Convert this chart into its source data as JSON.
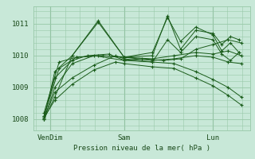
{
  "bg_color": "#c8e8d8",
  "plot_bg_color": "#c8e8d8",
  "line_color": "#1a5c1a",
  "grid_color": "#98c8a8",
  "xlabel": "Pression niveau de la mer( hPa )",
  "xtick_labels": [
    "VenDim",
    "Sam",
    "Lun"
  ],
  "xtick_positions": [
    0.08,
    0.42,
    0.83
  ],
  "ytick_values": [
    1008,
    1009,
    1010,
    1011
  ],
  "ylim": [
    1007.65,
    1011.55
  ],
  "xlim": [
    0.0,
    1.0
  ],
  "series": [
    [
      0.05,
      1008.0,
      0.1,
      1008.7,
      0.18,
      1010.0,
      0.3,
      1011.1,
      0.42,
      1009.95,
      0.55,
      1010.1,
      0.62,
      1011.2,
      0.68,
      1010.45,
      0.75,
      1010.9,
      0.83,
      1010.65,
      0.87,
      1010.15,
      0.91,
      1010.4,
      0.95,
      1010.1
    ],
    [
      0.05,
      1008.0,
      0.1,
      1009.0,
      0.18,
      1009.75,
      0.28,
      1010.0,
      0.42,
      1009.85,
      0.55,
      1009.8,
      0.62,
      1010.5,
      0.68,
      1010.1,
      0.75,
      1010.6,
      0.83,
      1010.5,
      0.87,
      1010.05,
      0.91,
      1009.85,
      0.95,
      1010.1
    ],
    [
      0.05,
      1008.1,
      0.1,
      1009.3,
      0.18,
      1009.85,
      0.25,
      1010.0,
      0.35,
      1010.05,
      0.42,
      1009.85,
      0.5,
      1009.9,
      0.6,
      1009.85,
      0.68,
      1009.9,
      0.75,
      1010.2,
      0.83,
      1010.35,
      0.9,
      1010.5,
      0.96,
      1010.4
    ],
    [
      0.05,
      1008.2,
      0.12,
      1009.8,
      0.2,
      1009.95,
      0.32,
      1010.0,
      0.42,
      1009.95,
      0.55,
      1009.9,
      0.65,
      1010.0,
      0.75,
      1010.1,
      0.83,
      1010.05,
      0.9,
      1010.15,
      0.96,
      1010.0
    ],
    [
      0.05,
      1008.1,
      0.12,
      1009.6,
      0.2,
      1009.95,
      0.3,
      1010.0,
      0.42,
      1009.95,
      0.55,
      1009.85,
      0.65,
      1009.9,
      0.75,
      1010.0,
      0.83,
      1009.95,
      0.9,
      1009.8,
      0.96,
      1009.75
    ],
    [
      0.05,
      1008.05,
      0.1,
      1008.85,
      0.18,
      1009.3,
      0.28,
      1009.7,
      0.38,
      1010.0,
      0.42,
      1009.9,
      0.55,
      1009.8,
      0.65,
      1009.75,
      0.75,
      1009.5,
      0.83,
      1009.25,
      0.9,
      1009.0,
      0.96,
      1008.7
    ],
    [
      0.05,
      1008.05,
      0.1,
      1008.6,
      0.18,
      1009.1,
      0.28,
      1009.55,
      0.38,
      1009.8,
      0.42,
      1009.75,
      0.55,
      1009.65,
      0.65,
      1009.6,
      0.75,
      1009.3,
      0.83,
      1009.05,
      0.9,
      1008.75,
      0.96,
      1008.45
    ],
    [
      0.05,
      1008.0,
      0.1,
      1009.5,
      0.18,
      1010.0,
      0.3,
      1011.05,
      0.42,
      1009.95,
      0.55,
      1010.0,
      0.62,
      1011.25,
      0.68,
      1010.2,
      0.75,
      1010.8,
      0.83,
      1010.7,
      0.87,
      1010.35,
      0.91,
      1010.6,
      0.95,
      1010.5
    ]
  ]
}
